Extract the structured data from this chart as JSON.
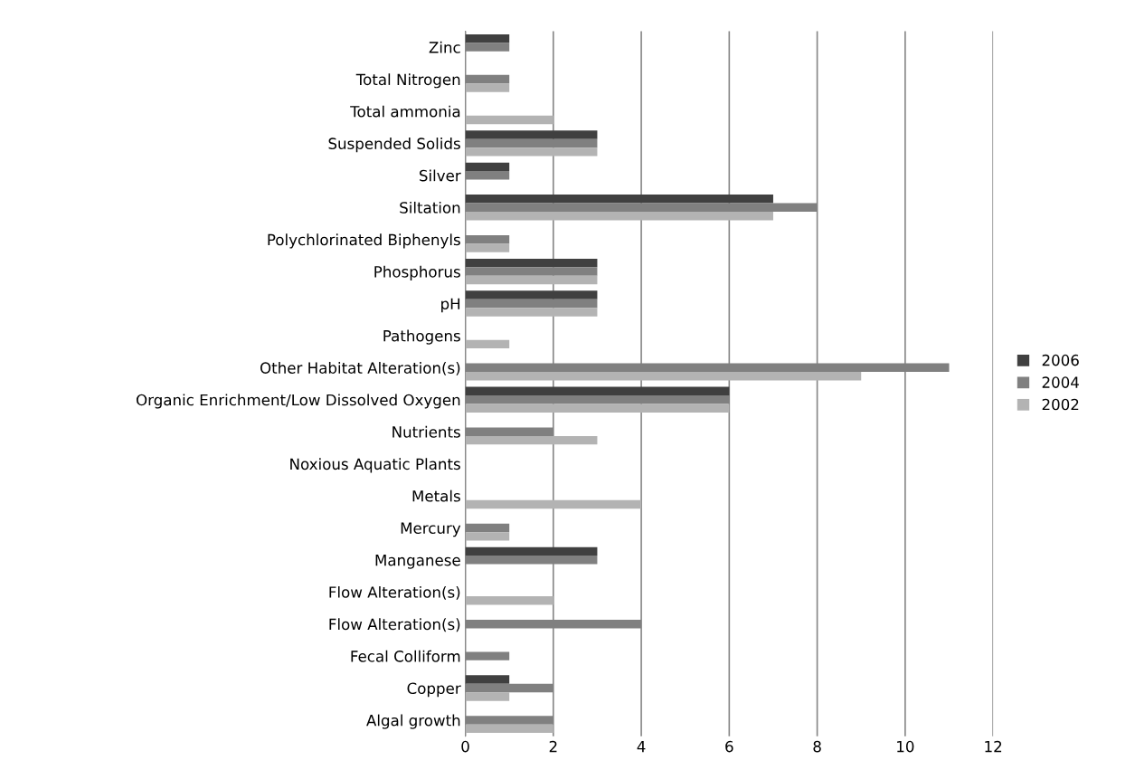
{
  "chart_data": {
    "type": "bar",
    "orientation": "horizontal",
    "categories": [
      "Zinc",
      "Total Nitrogen",
      "Total ammonia",
      "Suspended Solids",
      "Silver",
      "Siltation",
      "Polychlorinated Biphenyls",
      "Phosphorus",
      "pH",
      "Pathogens",
      "Other Habitat Alteration(s)",
      "Organic Enrichment/Low Dissolved Oxygen",
      "Nutrients",
      "Noxious Aquatic Plants",
      "Metals",
      "Mercury",
      "Manganese",
      "Flow Alteration(s)",
      "Flow Alteration(s)",
      "Fecal Colliform",
      "Copper",
      "Algal growth"
    ],
    "series": [
      {
        "name": "2006",
        "color": "#404040",
        "values": [
          1,
          0,
          0,
          3,
          1,
          7,
          0,
          3,
          3,
          0,
          0,
          6,
          0,
          0,
          0,
          0,
          3,
          0,
          0,
          0,
          1,
          0
        ]
      },
      {
        "name": "2004",
        "color": "#808080",
        "values": [
          1,
          1,
          0,
          3,
          1,
          8,
          1,
          3,
          3,
          0,
          11,
          6,
          2,
          0,
          0,
          1,
          3,
          0,
          4,
          1,
          2,
          2
        ]
      },
      {
        "name": "2002",
        "color": "#b3b3b3",
        "values": [
          0,
          1,
          2,
          3,
          0,
          7,
          1,
          3,
          3,
          1,
          9,
          6,
          3,
          0,
          4,
          1,
          0,
          2,
          0,
          0,
          1,
          2
        ]
      }
    ],
    "xlim": [
      0,
      12
    ],
    "xticks": [
      0,
      2,
      4,
      6,
      8,
      10,
      12
    ],
    "grid": "x",
    "legend": "right"
  }
}
